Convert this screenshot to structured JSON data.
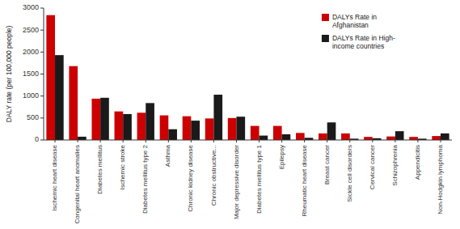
{
  "chart_data": {
    "type": "bar",
    "categories": [
      "Ischemic heart disease",
      "Congenital heart anomalies",
      "Diabetes mellitus",
      "Ischemic stroke",
      "Diabetes mellitus type 2",
      "Asthma",
      "Chronic kidney disease",
      "Chronic obstructive...",
      "Major depressive disorder",
      "Diabetes mellitus type 1",
      "Epilepsy",
      "Rheumatic heart disease",
      "Breast cancer",
      "Sickle cell disorders",
      "Cervical cancer",
      "Schizophrenia",
      "Appendicitis",
      "Non-Hodgkin lymphoma"
    ],
    "series": [
      {
        "name": "DALYs Rate in\nAfghanistan",
        "color": "#cc0000",
        "values": [
          2840,
          1680,
          940,
          650,
          620,
          560,
          540,
          490,
          500,
          320,
          320,
          160,
          150,
          150,
          70,
          80,
          70,
          90
        ]
      },
      {
        "name": "DALYs Rate in High-\nincome countries",
        "color": "#1a1a1a",
        "values": [
          1930,
          75,
          960,
          590,
          840,
          245,
          440,
          1030,
          530,
          100,
          130,
          50,
          400,
          30,
          40,
          200,
          30,
          150
        ]
      }
    ],
    "ylabel": "DALY rate (per 100,000 people)",
    "ylim": [
      0,
      3000
    ],
    "yticks": [
      0,
      500,
      1000,
      1500,
      2000,
      2500,
      3000
    ],
    "legend": "upper right",
    "grid": false
  }
}
